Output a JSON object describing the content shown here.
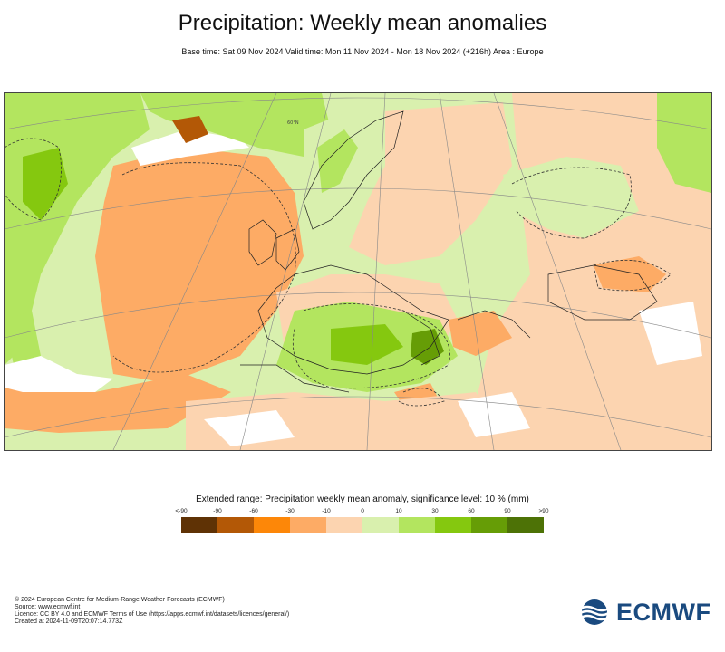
{
  "header": {
    "title": "Precipitation: Weekly mean anomalies",
    "subtitle": "Base time: Sat 09 Nov 2024 Valid time: Mon 11 Nov 2024 - Mon 18 Nov 2024 (+216h) Area : Europe"
  },
  "map": {
    "area": "Europe",
    "graticule_label": "60°N"
  },
  "legend": {
    "title": "Extended range: Precipitation weekly mean anomaly, significance level: 10 % (mm)",
    "ticks": [
      "<-90",
      "-90",
      "-60",
      "-30",
      "-10",
      "0",
      "10",
      "30",
      "60",
      "90",
      ">90"
    ],
    "colors": [
      "#5f3205",
      "#b35806",
      "#fd8708",
      "#fdab65",
      "#fcd4b0",
      "#d9f0ae",
      "#b3e55f",
      "#85c80f",
      "#669d06",
      "#4d7206"
    ]
  },
  "footer": {
    "line1": "© 2024 European Centre for Medium-Range Weather Forecasts (ECMWF)",
    "line2": "Source: www.ecmwf.int",
    "line3": "Licence: CC BY 4.0 and ECMWF Terms of Use (https://apps.ecmwf.int/datasets/licences/general/)",
    "line4": "Created at 2024-11-09T20:07:14.773Z"
  },
  "logo": {
    "text": "ECMWF",
    "brand_color": "#1a4a7f"
  }
}
